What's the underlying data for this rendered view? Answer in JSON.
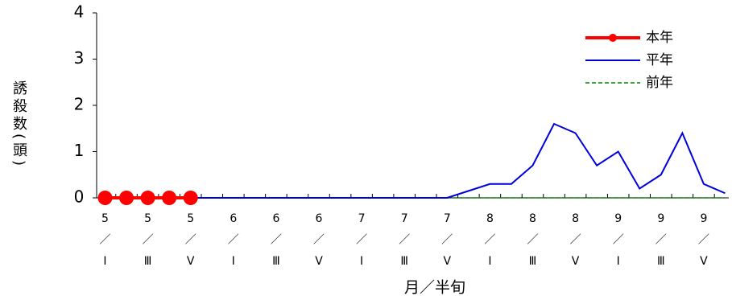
{
  "chart_data": {
    "type": "line",
    "y_label": "誘殺数(頭)",
    "x_label": "月／半旬",
    "categories": [
      "5／Ⅰ",
      null,
      "5／Ⅲ",
      null,
      "5／Ⅴ",
      null,
      "6／Ⅰ",
      null,
      "6／Ⅲ",
      null,
      "6／Ⅴ",
      null,
      "7／Ⅰ",
      null,
      "7／Ⅲ",
      null,
      "7／Ⅴ",
      null,
      "8／Ⅰ",
      null,
      "8／Ⅲ",
      null,
      "8／Ⅴ",
      null,
      "9／Ⅰ",
      null,
      "9／Ⅲ",
      null,
      "9／Ⅴ",
      null
    ],
    "ylim": [
      0,
      4
    ],
    "yticks": [
      0,
      1,
      2,
      3,
      4
    ],
    "legend": "top-right",
    "series": [
      {
        "name": "本年",
        "color": "#ff0000",
        "width": 4,
        "marker": "circle",
        "dash": false,
        "values": [
          0,
          0,
          0,
          0,
          0,
          null,
          null,
          null,
          null,
          null,
          null,
          null,
          null,
          null,
          null,
          null,
          null,
          null,
          null,
          null,
          null,
          null,
          null,
          null,
          null,
          null,
          null,
          null,
          null,
          null
        ]
      },
      {
        "name": "平年",
        "color": "#0000dd",
        "width": 2,
        "marker": null,
        "dash": false,
        "values": [
          0,
          0,
          0,
          0,
          0,
          0,
          0,
          0,
          0,
          0,
          0,
          0,
          0,
          0,
          0,
          0,
          0,
          0.15,
          0.3,
          0.3,
          0.7,
          1.6,
          1.4,
          0.7,
          1.0,
          0.2,
          0.5,
          1.4,
          0.3,
          0.1
        ]
      },
      {
        "name": "前年",
        "color": "#008000",
        "width": 1.5,
        "marker": null,
        "dash": true,
        "values": [
          0,
          0,
          0,
          0,
          0,
          0,
          0,
          0,
          0,
          0,
          0,
          0,
          0,
          0,
          0,
          0,
          0,
          0,
          0,
          0,
          0,
          0,
          0,
          0,
          0,
          0,
          0,
          0,
          0,
          0
        ]
      }
    ]
  }
}
